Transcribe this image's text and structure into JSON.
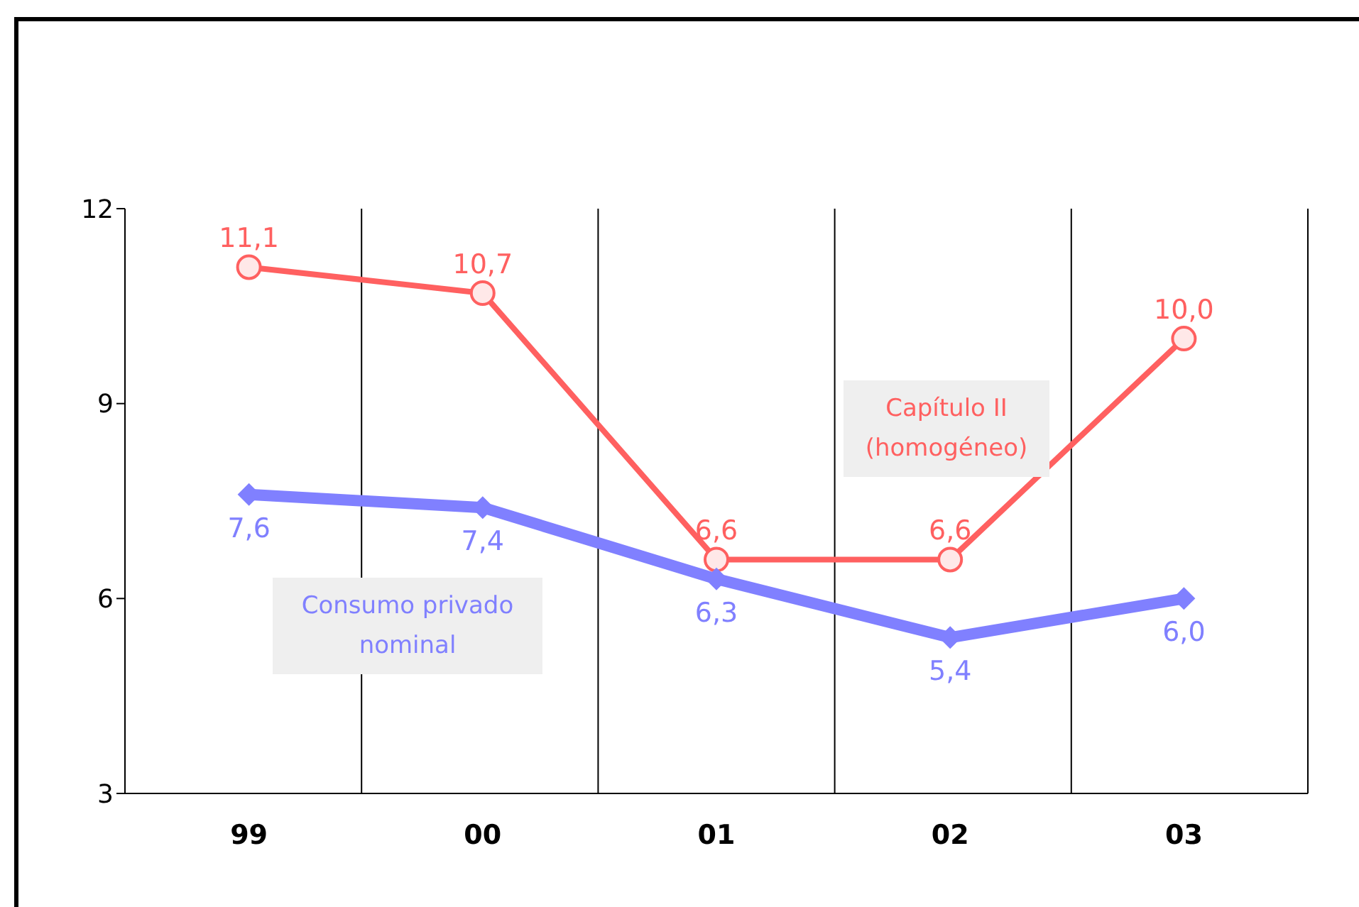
{
  "chart_data": {
    "type": "line",
    "categories": [
      "99",
      "00",
      "01",
      "02",
      "03"
    ],
    "ylim": [
      3,
      12
    ],
    "yticks": [
      3,
      6,
      9,
      12
    ],
    "grid": "x",
    "series": [
      {
        "name": "Capítulo II (homogéneo)",
        "color": "#ff6060",
        "values": [
          11.1,
          10.7,
          6.6,
          6.6,
          10.0
        ],
        "value_labels": [
          "11,1",
          "10,7",
          "6,6",
          "6,6",
          "10,0"
        ],
        "marker": "circle"
      },
      {
        "name": "Consumo privado nominal",
        "color": "#8080ff",
        "values": [
          7.6,
          7.4,
          6.3,
          5.4,
          6.0
        ],
        "value_labels": [
          "7,6",
          "7,4",
          "6,3",
          "5,4",
          "6,0"
        ],
        "marker": "diamond"
      }
    ]
  }
}
